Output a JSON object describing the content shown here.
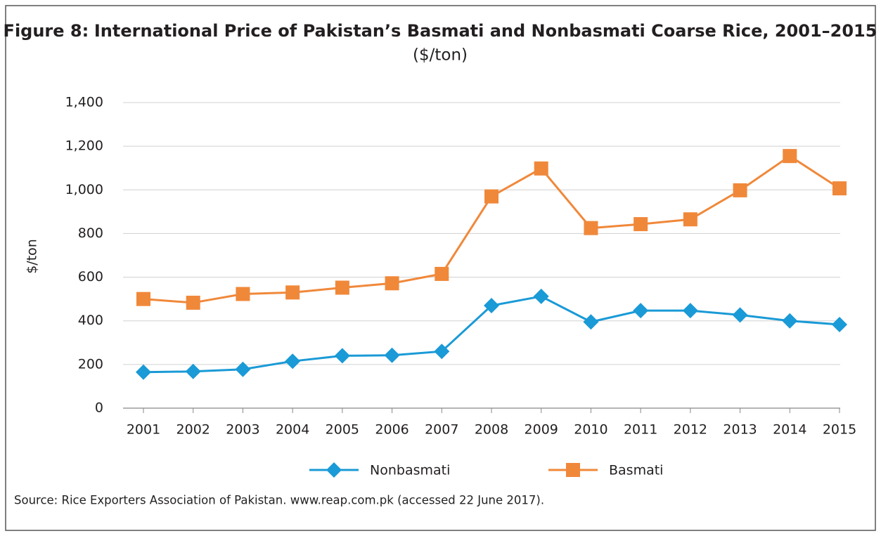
{
  "chart_data": {
    "type": "line",
    "figure_label": "Figure 8:",
    "title": "International Price of Pakistan’s Basmati and Nonbasmati Coarse Rice, 2001–2015",
    "subtitle": "($/ton)",
    "y_label": "$/ton",
    "source": "Source: Rice Exporters Association of Pakistan. www.reap.com.pk (accessed 22 June 2017).",
    "categories": [
      "2001",
      "2002",
      "2003",
      "2004",
      "2005",
      "2006",
      "2007",
      "2008",
      "2009",
      "2010",
      "2011",
      "2012",
      "2013",
      "2014",
      "2015"
    ],
    "series": [
      {
        "name": "Nonbasmati",
        "color": "#1a9ad6",
        "marker": "diamond",
        "values": [
          165,
          168,
          178,
          215,
          240,
          242,
          260,
          470,
          512,
          395,
          447,
          447,
          427,
          400,
          383
        ]
      },
      {
        "name": "Basmati",
        "color": "#f0883a",
        "marker": "square",
        "values": [
          500,
          483,
          523,
          530,
          552,
          572,
          615,
          970,
          1098,
          825,
          843,
          865,
          998,
          1155,
          1007
        ]
      }
    ],
    "ylim": [
      0,
      1400
    ],
    "yticks": [
      0,
      200,
      400,
      600,
      800,
      {
        "value": 1000,
        "label": "1,000"
      },
      {
        "value": 1200,
        "label": "1,200"
      },
      {
        "value": 1400,
        "label": "1,400"
      }
    ],
    "grid": true,
    "legend": "bottom"
  }
}
